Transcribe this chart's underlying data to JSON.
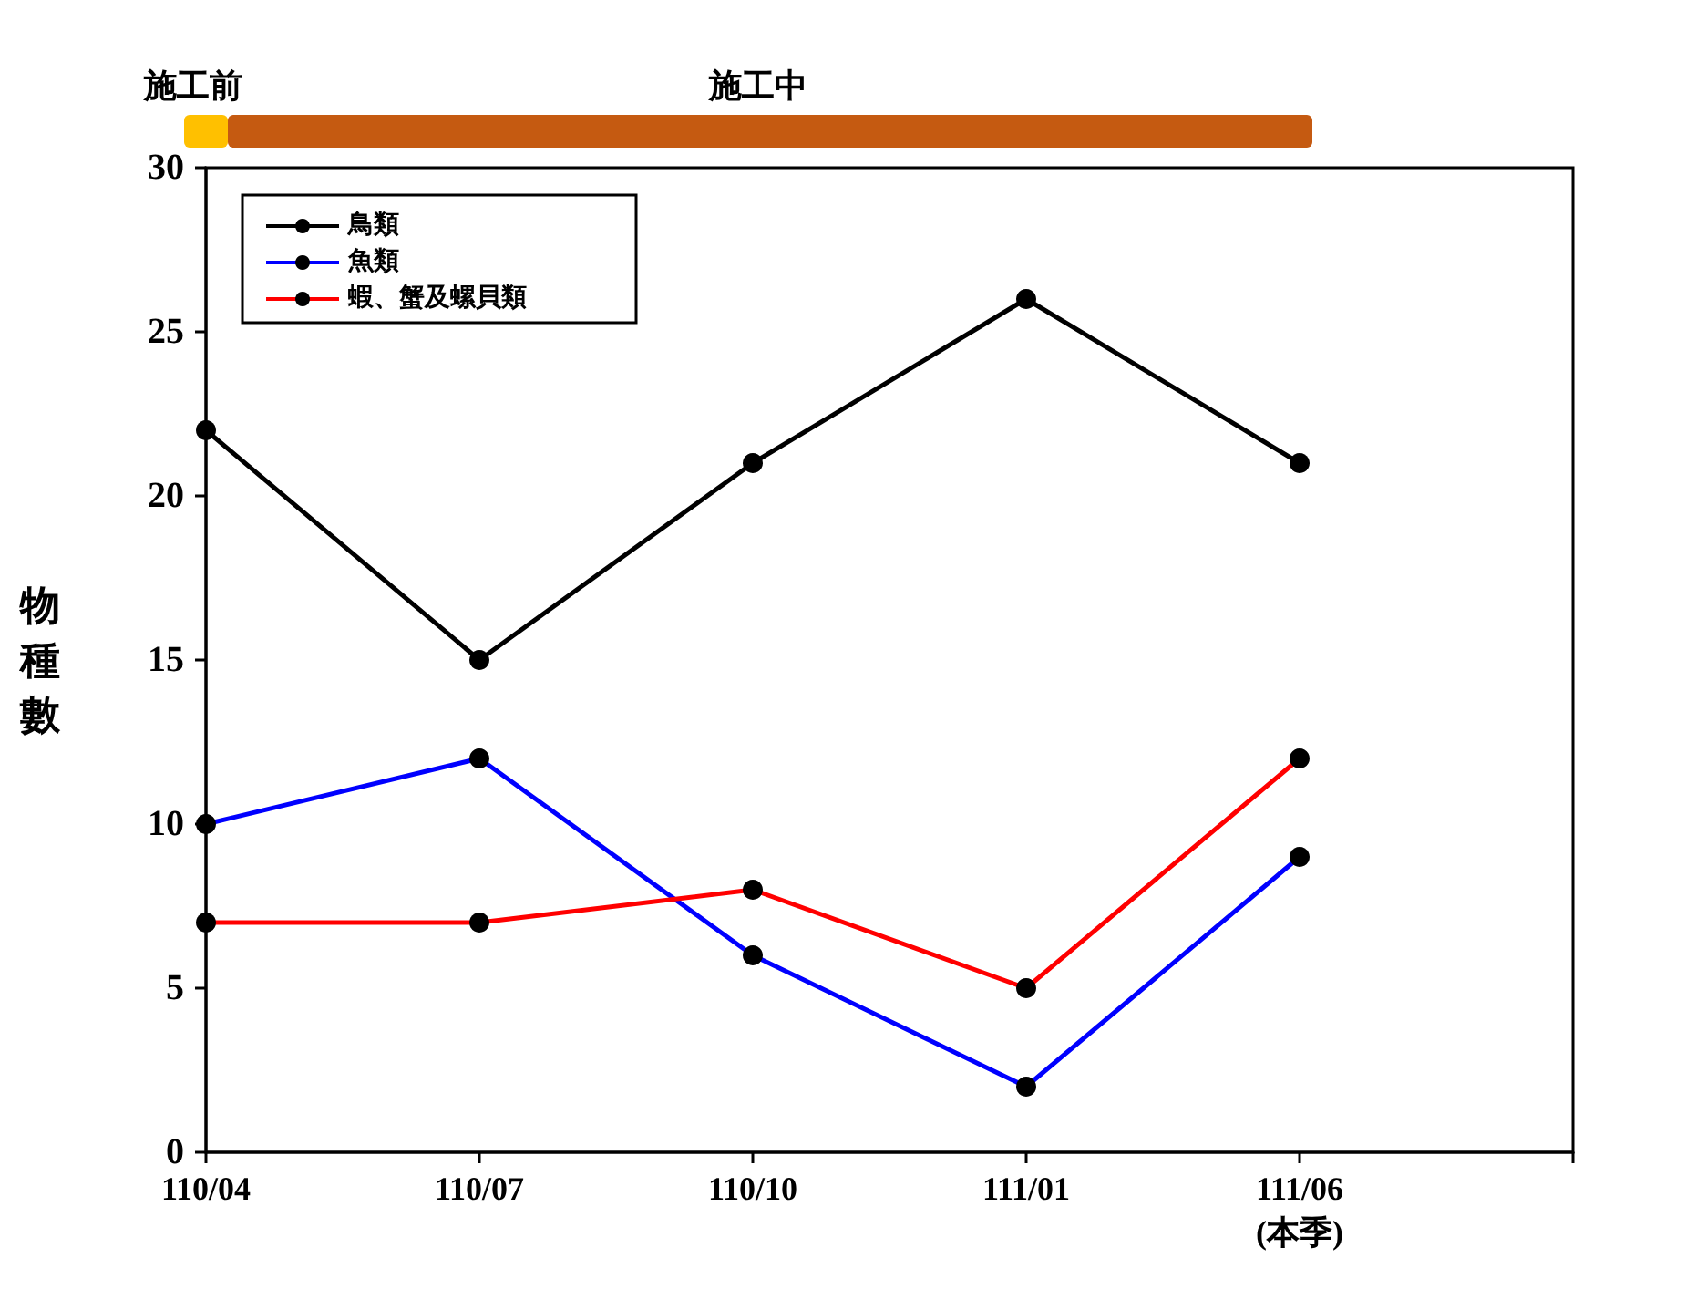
{
  "chart_data": {
    "type": "line",
    "ylabel": "物種數",
    "categories": [
      "110/04",
      "110/07",
      "110/10",
      "111/01",
      "111/06\n(本季)",
      null
    ],
    "series": [
      {
        "name": "鳥類",
        "color": "#000000",
        "values": [
          22,
          15,
          21,
          26,
          21,
          null
        ]
      },
      {
        "name": "魚類",
        "color": "#0000ff",
        "values": [
          10,
          12,
          6,
          2,
          9,
          null
        ]
      },
      {
        "name": "蝦、蟹及螺貝類",
        "color": "#ff0000",
        "values": [
          7,
          7,
          8,
          5,
          12,
          null
        ]
      }
    ],
    "ylim": [
      0,
      30
    ],
    "yticks": [
      0,
      5,
      10,
      15,
      20,
      25,
      30
    ],
    "annotations": [
      "施工前",
      "施工中"
    ],
    "grid": false,
    "legend": "top left",
    "marker": "circle",
    "line_style": "solid"
  }
}
